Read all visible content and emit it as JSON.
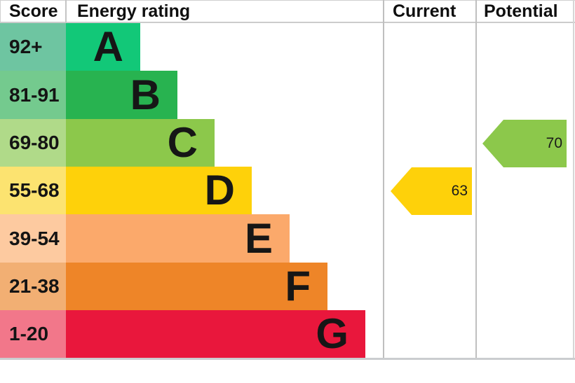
{
  "header": {
    "score": "Score",
    "energy_rating": "Energy rating",
    "current": "Current",
    "potential": "Potential"
  },
  "bands": [
    {
      "letter": "A",
      "score": "92+",
      "bar_color": "#12c878",
      "score_cell_color": "#6ec5a1"
    },
    {
      "letter": "B",
      "score": "81-91",
      "bar_color": "#28b350",
      "score_cell_color": "#74ca8e"
    },
    {
      "letter": "C",
      "score": "69-80",
      "bar_color": "#8cc84b",
      "score_cell_color": "#b0da89"
    },
    {
      "letter": "D",
      "score": "55-68",
      "bar_color": "#fed10a",
      "score_cell_color": "#fce370"
    },
    {
      "letter": "E",
      "score": "39-54",
      "bar_color": "#fba96b",
      "score_cell_color": "#fdcaa0"
    },
    {
      "letter": "F",
      "score": "21-38",
      "bar_color": "#ee8528",
      "score_cell_color": "#f2af73"
    },
    {
      "letter": "G",
      "score": "1-20",
      "bar_color": "#e9173c",
      "score_cell_color": "#f2778a"
    }
  ],
  "ratings": {
    "current": {
      "value": "63",
      "band": "D",
      "arrow_color": "#fed10a"
    },
    "potential": {
      "value": "70",
      "band": "C",
      "arrow_color": "#8cc84b"
    }
  },
  "chart_data": {
    "type": "bar",
    "title": "Energy rating",
    "columns": [
      "Score",
      "Energy rating",
      "Current",
      "Potential"
    ],
    "categories": [
      "A",
      "B",
      "C",
      "D",
      "E",
      "F",
      "G"
    ],
    "score_ranges": [
      "92+",
      "81-91",
      "69-80",
      "55-68",
      "39-54",
      "21-38",
      "1-20"
    ],
    "band_colors": [
      "#12c878",
      "#28b350",
      "#8cc84b",
      "#fed10a",
      "#fba96b",
      "#ee8528",
      "#e9173c"
    ],
    "bar_step_relative": [
      1,
      1.5,
      2,
      2.5,
      3,
      3.5,
      4
    ],
    "current_rating": 63,
    "current_band": "D",
    "potential_rating": 70,
    "potential_band": "C",
    "legend_position": "none",
    "grid": "off"
  }
}
